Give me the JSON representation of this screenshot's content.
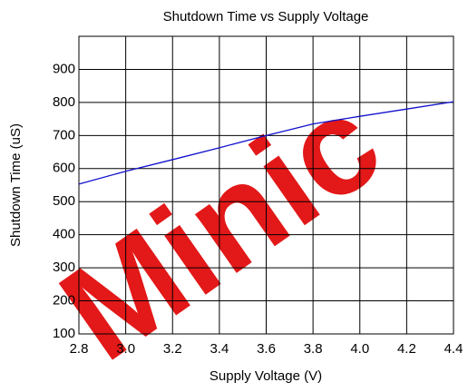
{
  "chart_data": {
    "type": "line",
    "title": "Shutdown Time vs Supply Voltage",
    "watermark": "Minic",
    "x_label": "Supply Voltage (V)",
    "y_label": "Shutdown Time (uS)",
    "x": [
      2.8,
      3.0,
      3.2,
      3.4,
      3.6,
      3.8,
      4.0,
      4.2,
      4.4
    ],
    "series": [
      {
        "name": "Shutdown Time",
        "color": "#1010cc",
        "values": [
          553,
          592,
          627,
          663,
          700,
          735,
          758,
          780,
          802
        ]
      }
    ],
    "xlim": [
      2.8,
      4.4
    ],
    "xticks": [
      2.8,
      {
        "value": 3,
        "label": "3.0"
      },
      3.2,
      3.4,
      3.6,
      3.8,
      {
        "value": 4,
        "label": "4.0"
      },
      4.2,
      4.4
    ],
    "ylim": [
      100,
      1000
    ],
    "yticks": [
      100,
      200,
      300,
      400,
      500,
      600,
      700,
      800,
      900
    ],
    "grid": true
  }
}
